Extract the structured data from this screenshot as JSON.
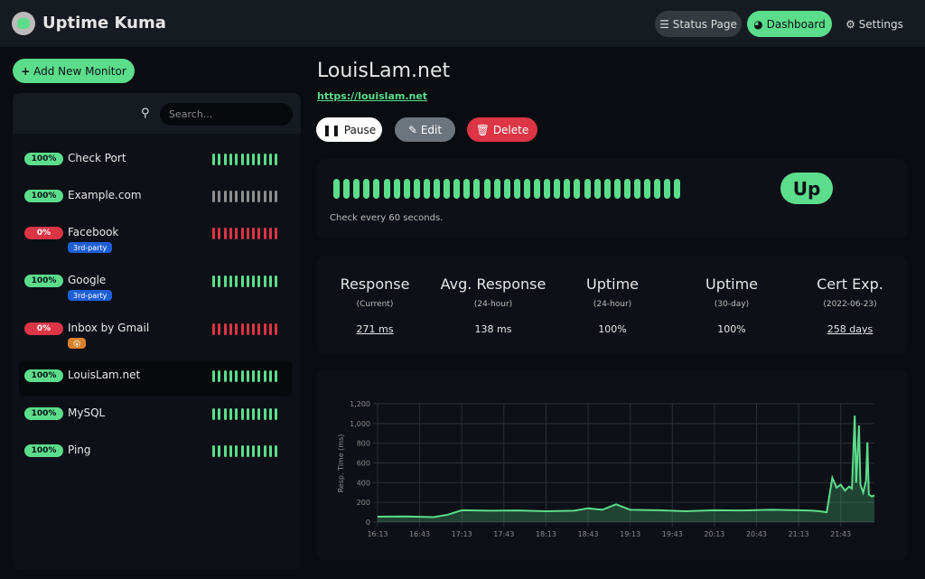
{
  "header": {
    "app_name": "Uptime Kuma",
    "nav": [
      "Status Page",
      "Dashboard",
      "Settings"
    ]
  },
  "sidebar": {
    "add_button": "Add New Monitor",
    "search_placeholder": "Search...",
    "monitors": [
      {
        "uptime": "100%",
        "name": "Check Port",
        "bar_color": "#5cdd8b",
        "badge_color": "#5cdd8b"
      },
      {
        "uptime": "100%",
        "name": "Example.com",
        "bar_color": "#8e8e8e",
        "badge_color": "#5cdd8b"
      },
      {
        "uptime": "0%",
        "name": "Facebook",
        "tag": "3rd-party",
        "bar_color": "#dc3545",
        "badge_color": "#dc3545"
      },
      {
        "uptime": "100%",
        "name": "Google",
        "tag": "3rd-party",
        "bar_color": "#5cdd8b",
        "badge_color": "#5cdd8b"
      },
      {
        "uptime": "0%",
        "name": "Inbox by Gmail",
        "tag": "😮",
        "bar_color": "#dc3545",
        "badge_color": "#dc3545"
      },
      {
        "uptime": "100%",
        "name": "LouisLam.net",
        "bar_color": "#5cdd8b",
        "badge_color": "#5cdd8b"
      },
      {
        "uptime": "100%",
        "name": "MySQL",
        "bar_color": "#5cdd8b",
        "badge_color": "#5cdd8b"
      },
      {
        "uptime": "100%",
        "name": "Ping",
        "bar_color": "#5cdd8b",
        "badge_color": "#5cdd8b"
      }
    ]
  },
  "main": {
    "title": "LouisLam.net",
    "url": "https://louislam.net",
    "buttons": [
      "Pause",
      "Edit",
      "Delete"
    ],
    "status": "Up",
    "check_text": "Check every 60 seconds.",
    "stats": [
      {
        "label": "Response",
        "sub": "(Current)",
        "value": "271 ms"
      },
      {
        "label": "Avg. Response",
        "sub": "(24-hour)",
        "value": "138 ms"
      },
      {
        "label": "Uptime",
        "sub": "(24-hour)",
        "value": "100%"
      },
      {
        "label": "Uptime",
        "sub": "(30-day)",
        "value": "100%"
      },
      {
        "label": "Cert Exp.",
        "sub": "(2022-06-23)",
        "value": "258 days"
      }
    ]
  },
  "chart_data": {
    "type": "line",
    "y_label": "Resp. Time (ms)",
    "grid": true,
    "xlim": [
      "16:13",
      "22:07"
    ],
    "xticks": [
      "16:13",
      "16:43",
      "17:13",
      "17:43",
      "18:13",
      "18:43",
      "19:13",
      "19:43",
      "20:13",
      "20:43",
      "21:13",
      "21:43"
    ],
    "ylim": [
      0,
      1200
    ],
    "yticks": [
      0,
      200,
      400,
      600,
      800,
      {
        "value": 1000,
        "label": "1,000"
      },
      {
        "value": 1200,
        "label": "1,200"
      }
    ],
    "x": [
      "16:13",
      "16:33",
      "16:53",
      "17:03",
      "17:13",
      "17:33",
      "17:53",
      "18:13",
      "18:33",
      "18:43",
      "18:53",
      "19:03",
      "19:13",
      "19:33",
      "19:53",
      "20:13",
      "20:33",
      "20:53",
      "21:13",
      "21:23",
      "21:28",
      "21:33",
      "21:37",
      "21:40",
      "21:43",
      "21:46",
      "21:49",
      "21:51",
      "21:53",
      "21:54",
      "21:56",
      "21:57",
      "21:59",
      "22:01",
      "22:02",
      "22:03",
      "22:05",
      "22:07"
    ],
    "series": [
      {
        "name": "Resp. Time",
        "color": "#5cdd8b",
        "values": [
          55,
          58,
          50,
          75,
          120,
          115,
          118,
          110,
          115,
          140,
          125,
          180,
          125,
          120,
          110,
          120,
          118,
          125,
          120,
          115,
          110,
          100,
          450,
          350,
          380,
          320,
          360,
          340,
          1080,
          400,
          980,
          380,
          300,
          420,
          810,
          280,
          260,
          270
        ]
      }
    ]
  }
}
